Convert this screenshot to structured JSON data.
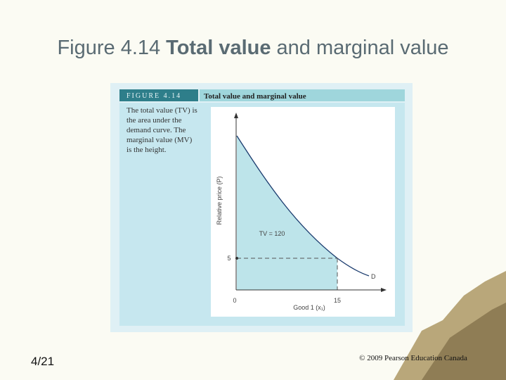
{
  "header": {
    "title_number": "Figure 4.14",
    "title_bold": "Total value",
    "title_rest": "and marginal value"
  },
  "figure": {
    "label": "FIGURE 4.14",
    "title": "Total value and marginal value",
    "caption": "The total value (TV) is the area under the demand curve. The marginal value (MV) is the height.",
    "y_axis_label": "Relative price (P)",
    "x_axis_label": "Good 1 (x₁)",
    "x_tick_0": "0",
    "x_tick_15": "15",
    "y_tick_5": "5",
    "curve_label": "D",
    "area_label": "TV = 120"
  },
  "footer": {
    "page": "4/21",
    "copyright": "© 2009 Pearson Education Canada"
  }
}
